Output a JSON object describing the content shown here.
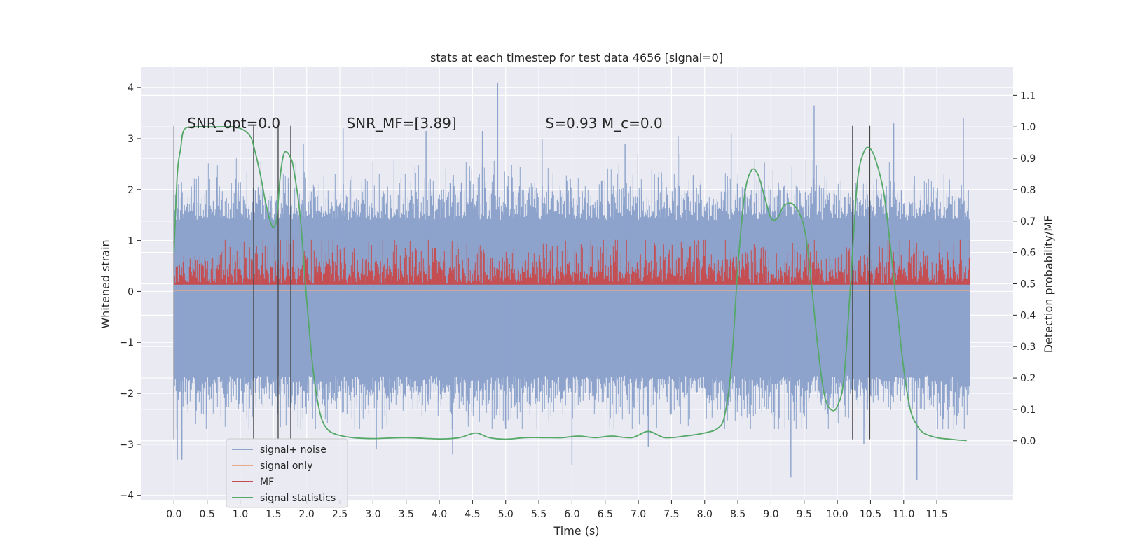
{
  "chart_data": {
    "type": "line",
    "title": "stats at each timestep for test data 4656 [signal=0]",
    "xlabel": "Time (s)",
    "ylabel_left": "Whitened strain",
    "ylabel_right": "Detection probability/MF",
    "xlim": [
      -0.5,
      12.65
    ],
    "ylim_left": [
      -4.1,
      4.4
    ],
    "ylim_right": [
      -0.19,
      1.19
    ],
    "xticks": [
      0.0,
      0.5,
      1.0,
      1.5,
      2.0,
      2.5,
      3.0,
      3.5,
      4.0,
      4.5,
      5.0,
      5.5,
      6.0,
      6.5,
      7.0,
      7.5,
      8.0,
      8.5,
      9.0,
      9.5,
      10.0,
      10.5,
      11.0,
      11.5
    ],
    "yticks_left": [
      4,
      3,
      2,
      1,
      0,
      -1,
      -2,
      -3,
      -4
    ],
    "yticks_right": [
      1.1,
      1.0,
      0.9,
      0.8,
      0.7,
      0.6,
      0.5,
      0.4,
      0.3,
      0.2,
      0.1,
      0.0
    ],
    "annotations": [
      {
        "id": "snr_opt",
        "text": "SNR_opt=0.0",
        "x": 0.2,
        "y": 3.3
      },
      {
        "id": "snr_mf",
        "text": "SNR_MF=[3.89]",
        "x": 2.6,
        "y": 3.3
      },
      {
        "id": "s_mc",
        "text": "S=0.93   M_c=0.0",
        "x": 5.6,
        "y": 3.3
      }
    ],
    "vlines_x": [
      0.0,
      1.2,
      1.57,
      1.76,
      10.23,
      10.49
    ],
    "vlines_ymin": -2.9,
    "vlines_ymax": 3.25,
    "series": [
      {
        "name": "signal+ noise",
        "color": "#8da3cc",
        "axis": "left",
        "x_range": [
          0.0,
          12.0
        ],
        "typical_range": [
          -1.65,
          1.4
        ],
        "peaks": [
          [
            0.05,
            -3.3
          ],
          [
            0.12,
            -3.3
          ],
          [
            1.95,
            2.9
          ],
          [
            2.55,
            3.2
          ],
          [
            3.05,
            -3.1
          ],
          [
            3.8,
            3.15
          ],
          [
            4.2,
            -3.2
          ],
          [
            4.65,
            3.15
          ],
          [
            4.88,
            4.1
          ],
          [
            5.0,
            -2.7
          ],
          [
            5.55,
            3.0
          ],
          [
            6.0,
            -3.4
          ],
          [
            6.8,
            2.9
          ],
          [
            7.15,
            -3.05
          ],
          [
            7.6,
            3.05
          ],
          [
            8.4,
            3.1
          ],
          [
            9.3,
            -3.65
          ],
          [
            9.65,
            3.65
          ],
          [
            10.4,
            -3.0
          ],
          [
            10.85,
            3.3
          ],
          [
            11.2,
            -3.7
          ],
          [
            11.9,
            3.4
          ]
        ]
      },
      {
        "name": "signal only",
        "color": "#e8a88b",
        "axis": "left",
        "x": [
          0.0,
          12.0
        ],
        "y": [
          0.02,
          0.02
        ]
      },
      {
        "name": "MF",
        "color": "#c44e52",
        "axis": "right",
        "x_range": [
          0.0,
          12.0
        ],
        "baseline": 0.5,
        "typical_high": 0.57,
        "max": 0.64
      },
      {
        "name": "signal statistics",
        "color": "#55a868",
        "axis": "right",
        "x": [
          0.0,
          0.05,
          0.1,
          0.15,
          0.3,
          0.6,
          0.9,
          1.05,
          1.15,
          1.2,
          1.3,
          1.38,
          1.45,
          1.5,
          1.55,
          1.6,
          1.65,
          1.7,
          1.76,
          1.8,
          1.9,
          2.0,
          2.1,
          2.2,
          2.3,
          2.45,
          2.7,
          3.0,
          3.5,
          4.0,
          4.3,
          4.55,
          4.75,
          5.0,
          5.3,
          5.6,
          5.85,
          6.1,
          6.35,
          6.6,
          6.9,
          7.15,
          7.4,
          7.7,
          8.0,
          8.2,
          8.3,
          8.4,
          8.5,
          8.6,
          8.7,
          8.8,
          8.9,
          9.0,
          9.1,
          9.2,
          9.35,
          9.5,
          9.6,
          9.7,
          9.8,
          9.9,
          10.0,
          10.1,
          10.2,
          10.3,
          10.4,
          10.5,
          10.6,
          10.7,
          10.8,
          10.9,
          11.0,
          11.1,
          11.2,
          11.3,
          11.5,
          11.7,
          11.85,
          11.95
        ],
        "y": [
          0.6,
          0.85,
          0.93,
          0.99,
          1.0,
          1.0,
          1.0,
          0.99,
          0.97,
          0.94,
          0.85,
          0.76,
          0.7,
          0.68,
          0.71,
          0.84,
          0.91,
          0.92,
          0.9,
          0.87,
          0.72,
          0.45,
          0.22,
          0.09,
          0.04,
          0.02,
          0.01,
          0.007,
          0.01,
          0.006,
          0.01,
          0.025,
          0.01,
          0.005,
          0.01,
          0.01,
          0.01,
          0.015,
          0.01,
          0.015,
          0.01,
          0.03,
          0.01,
          0.015,
          0.025,
          0.04,
          0.08,
          0.23,
          0.55,
          0.78,
          0.86,
          0.85,
          0.78,
          0.71,
          0.71,
          0.75,
          0.75,
          0.68,
          0.52,
          0.31,
          0.15,
          0.1,
          0.11,
          0.2,
          0.5,
          0.82,
          0.92,
          0.93,
          0.88,
          0.79,
          0.62,
          0.42,
          0.23,
          0.1,
          0.05,
          0.025,
          0.01,
          0.005,
          0.002,
          0.001
        ]
      }
    ],
    "legend": {
      "placement": "lower-left",
      "entries": [
        "signal+ noise",
        "signal only",
        "MF",
        "signal statistics"
      ]
    },
    "grid": true
  }
}
